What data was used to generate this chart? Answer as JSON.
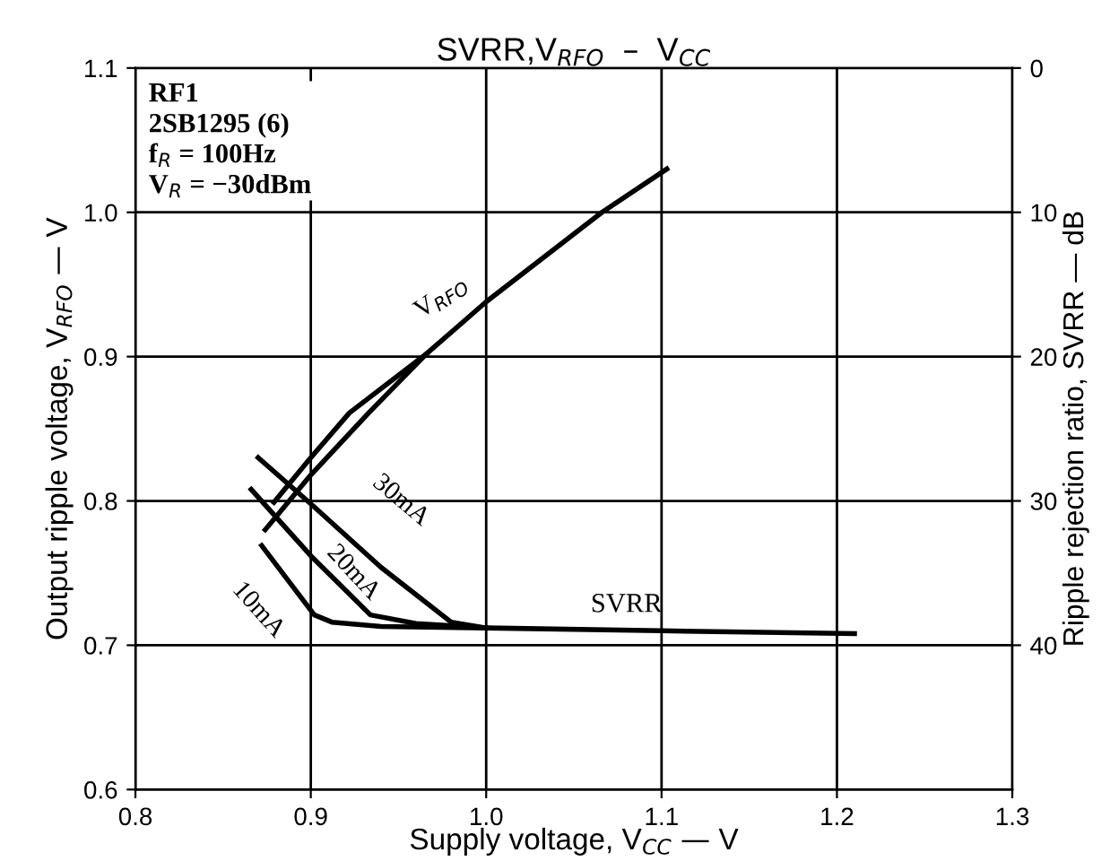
{
  "chart_data": {
    "type": "line",
    "title": "SVRR,V$_{RFO}$  –  V$_{CC}$",
    "xlabel": "Supply voltage, V$_{CC}$ — V",
    "ylabel": "Output ripple voltage, V$_{RFO}$ — V",
    "y2label": "Ripple rejection ratio, SVRR — dB",
    "series": [
      {
        "name": "V$_{RFO}$",
        "color": "#000000",
        "x": [
          0.874,
          0.9,
          0.933,
          0.966,
          1.0,
          1.066,
          1.103
        ],
        "values": [
          0.78,
          0.818,
          0.861,
          0.902,
          0.938,
          1.0,
          1.03
        ]
      },
      {
        "color": "#000000",
        "x": [
          0.879,
          0.9,
          0.922,
          0.966
        ],
        "values": [
          0.799,
          0.83,
          0.861,
          0.902
        ]
      },
      {
        "name": "30mA",
        "color": "#000000",
        "axis": "y2",
        "x": [
          0.87,
          0.9,
          0.94,
          0.98,
          1.0,
          1.1,
          1.21
        ],
        "values": [
          27.0,
          30.2,
          34.6,
          38.4,
          38.8,
          39.0,
          39.2
        ]
      },
      {
        "name": "20mA",
        "color": "#000000",
        "axis": "y2",
        "x": [
          0.866,
          0.9,
          0.934,
          0.96,
          1.0
        ],
        "values": [
          29.2,
          33.8,
          37.9,
          38.5,
          38.8
        ]
      },
      {
        "name": "10mA",
        "color": "#000000",
        "axis": "y2",
        "x": [
          0.872,
          0.902,
          0.912,
          0.94,
          1.0
        ],
        "values": [
          33.1,
          37.9,
          38.4,
          38.7,
          38.8
        ]
      }
    ],
    "annotations": [
      {
        "text": "RF1\n2SB1295 (6)\nf$_{R}$ = 100Hz\nV$_{R}$ = −30dBm"
      },
      "SVRR"
    ],
    "xlim": [
      0.8,
      1.3
    ],
    "xticks": [
      0.8,
      0.9,
      {
        "value": 1.0,
        "label": "1.0"
      },
      1.1,
      1.2,
      1.3
    ],
    "ylim": [
      0.6,
      1.1
    ],
    "yticks": [
      0.6,
      0.7,
      0.8,
      0.9,
      {
        "value": 1.0,
        "label": "1.0"
      },
      1.1
    ],
    "y2lim": [
      50,
      0
    ],
    "y2ticks": [
      0,
      10,
      20,
      30,
      40
    ],
    "grid": true,
    "line_style": "solid",
    "marker": "none"
  }
}
